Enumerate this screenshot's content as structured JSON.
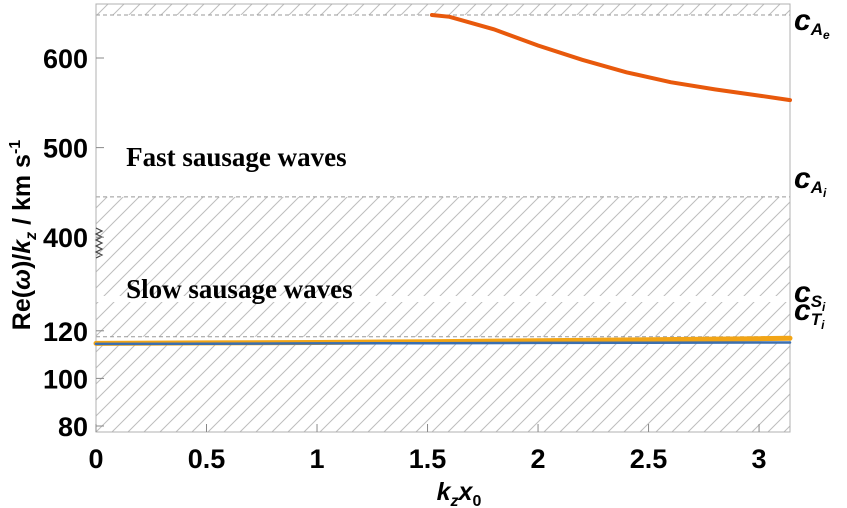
{
  "chart_data": {
    "type": "line",
    "xlabel": "k_z x_0",
    "ylabel": "Re(ω)/k_z / km s^-1",
    "xlim": [
      0,
      3.14
    ],
    "y_ticks": [
      "80",
      "100",
      "120",
      "400",
      "500",
      "600"
    ],
    "x_ticks": [
      "0",
      "0.5",
      "1",
      "1.5",
      "2",
      "2.5",
      "3"
    ],
    "y_axis_break": true,
    "y_segments": [
      {
        "ylim": [
          80,
          130
        ],
        "ticks": [
          80,
          100,
          120
        ]
      },
      {
        "ylim": [
          340,
          660
        ],
        "ticks": [
          400,
          500,
          600
        ]
      }
    ],
    "annotations": [
      {
        "text": "Fast sausage waves",
        "x": 0.15,
        "y": 450
      },
      {
        "text": "Slow sausage waves",
        "x": 0.15,
        "y": 119
      }
    ],
    "characteristic_speeds": [
      {
        "symbol": "c",
        "subscript": "A",
        "subsubscript": "e",
        "y": 648,
        "hatch_side": "above"
      },
      {
        "symbol": "c",
        "subscript": "A",
        "subsubscript": "i",
        "y": 445,
        "hatch_side": "below"
      },
      {
        "symbol": "c",
        "subscript": "S",
        "subsubscript": "i",
        "y": 117.5,
        "hatch_side": "none"
      },
      {
        "symbol": "c",
        "subscript": "T",
        "subsubscript": "i",
        "y": 115,
        "hatch_side": "below"
      }
    ],
    "series": [
      {
        "color": "#e8590c",
        "x": [
          1.52,
          1.6,
          1.8,
          2.0,
          2.2,
          2.4,
          2.6,
          2.8,
          3.0,
          3.14
        ],
        "y": [
          648,
          646,
          632,
          614,
          598,
          584,
          573,
          565,
          558,
          553
        ]
      },
      {
        "color": "#f2a516",
        "x": [
          0,
          0.5,
          1.0,
          1.5,
          2.0,
          2.5,
          3.0,
          3.14
        ],
        "y": [
          114.7,
          114.9,
          115.1,
          115.4,
          115.8,
          116.2,
          116.7,
          116.9
        ]
      },
      {
        "color": "#3b6fb0",
        "x": [
          0,
          0.5,
          1.0,
          1.5,
          2.0,
          2.5,
          3.0,
          3.14
        ],
        "y": [
          114.5,
          114.6,
          114.7,
          114.8,
          114.9,
          115.0,
          115.1,
          115.1
        ]
      }
    ],
    "grid": false
  }
}
